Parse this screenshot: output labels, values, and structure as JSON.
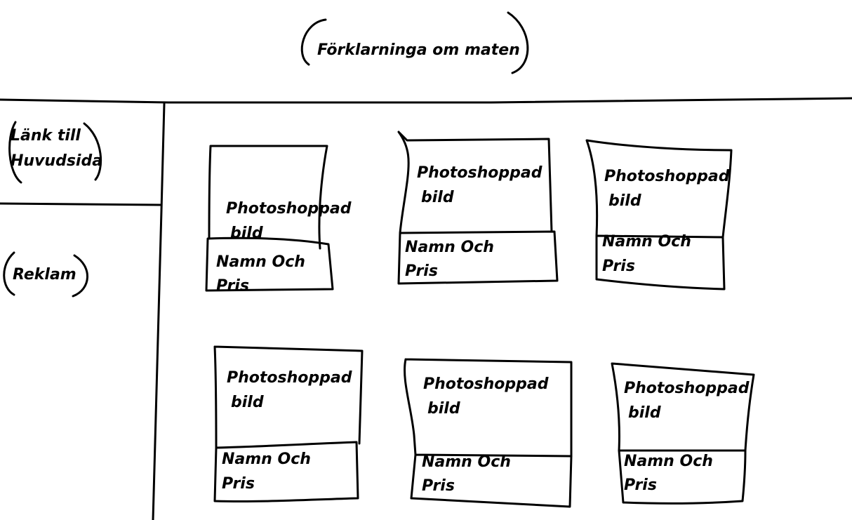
{
  "header": {
    "title": "Förklarninga om maten"
  },
  "sidebar": {
    "home_link_line1": "Länk till",
    "home_link_line2": "Huvudsida",
    "ad": "Reklam"
  },
  "products": [
    {
      "image_line1": "Photoshoppad",
      "image_line2": "bild",
      "info_line1": "Namn Och",
      "info_line2": "Pris"
    },
    {
      "image_line1": "Photoshoppad",
      "image_line2": "bild",
      "info_line1": "Namn Och",
      "info_line2": "Pris"
    },
    {
      "image_line1": "Photoshoppad",
      "image_line2": "bild",
      "info_line1": "Namn Och",
      "info_line2": "Pris"
    },
    {
      "image_line1": "Photoshoppad",
      "image_line2": "bild",
      "info_line1": "Namn Och",
      "info_line2": "Pris"
    },
    {
      "image_line1": "Photoshoppad",
      "image_line2": "bild",
      "info_line1": "Namn Och",
      "info_line2": "Pris"
    },
    {
      "image_line1": "Photoshoppad",
      "image_line2": "bild",
      "info_line1": "Namn Och",
      "info_line2": "Pris"
    }
  ]
}
